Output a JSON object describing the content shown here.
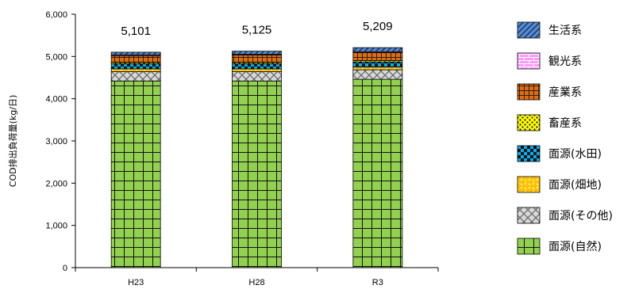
{
  "chart_data": {
    "type": "bar",
    "stacked": true,
    "categories": [
      "H23",
      "H28",
      "R3"
    ],
    "totals": [
      "5,101",
      "5,125",
      "5,209"
    ],
    "ylabel": "COD排出負荷量(kg/日)",
    "ylim": [
      0,
      6000
    ],
    "yticks": [
      "0",
      "1,000",
      "2,000",
      "3,000",
      "4,000",
      "5,000",
      "6,000"
    ],
    "grid": false,
    "legend_position": "right",
    "series": [
      {
        "name": "面源(自然)",
        "values": [
          4420,
          4420,
          4460
        ],
        "color": "#92D050"
      },
      {
        "name": "面源(その他)",
        "values": [
          220,
          220,
          225
        ],
        "color": "#D9D9D9"
      },
      {
        "name": "面源(畑地)",
        "values": [
          65,
          65,
          65
        ],
        "color": "#FFC000"
      },
      {
        "name": "面源(水田)",
        "values": [
          120,
          120,
          120
        ],
        "color": "#00B0F0"
      },
      {
        "name": "畜産系",
        "values": [
          35,
          35,
          35
        ],
        "color": "#FFFF00"
      },
      {
        "name": "産業系",
        "values": [
          160,
          175,
          190
        ],
        "color": "#E46C0A"
      },
      {
        "name": "観光系",
        "values": [
          20,
          20,
          20
        ],
        "color": "#FF99FF"
      },
      {
        "name": "生活系",
        "values": [
          61,
          70,
          94
        ],
        "color": "#558ED5"
      }
    ]
  }
}
